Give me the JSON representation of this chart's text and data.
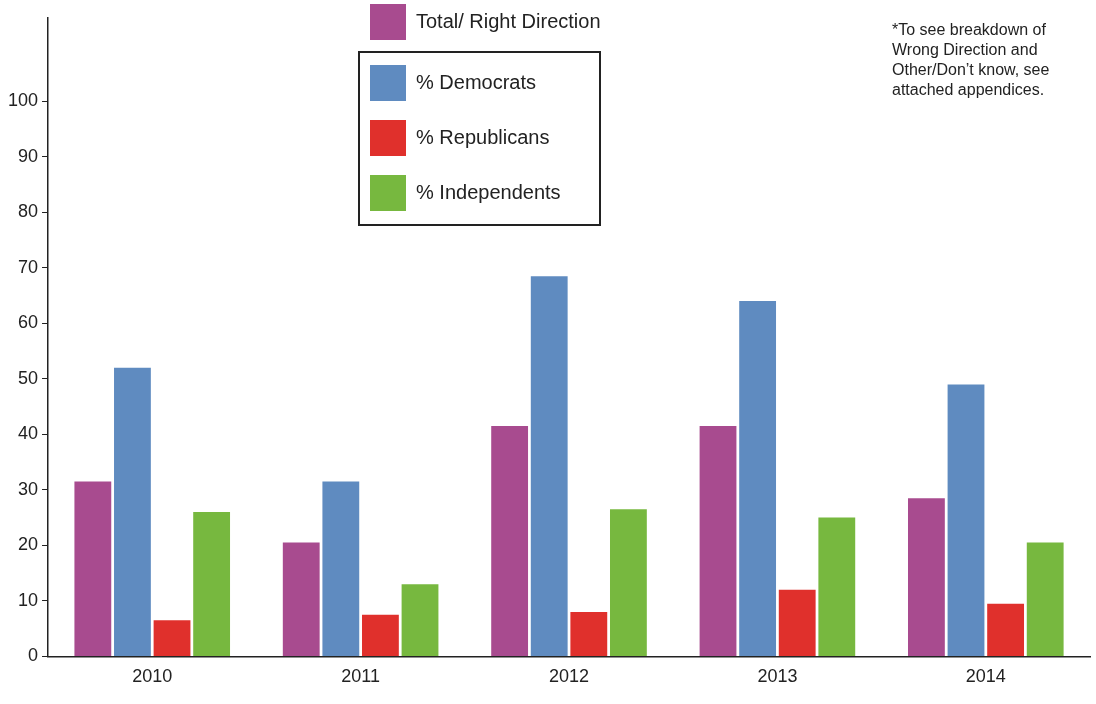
{
  "chart_data": {
    "type": "bar",
    "categories": [
      "2010",
      "2011",
      "2012",
      "2013",
      "2014"
    ],
    "series": [
      {
        "name": "Total/ Right Direction",
        "color": "#a84b8f",
        "values": [
          31.5,
          20.5,
          41.5,
          41.5,
          28.5
        ]
      },
      {
        "name": "% Democrats",
        "color": "#5f8bc0",
        "values": [
          52,
          31.5,
          68.5,
          64,
          49
        ]
      },
      {
        "name": "% Republicans",
        "color": "#e0302c",
        "values": [
          6.5,
          7.5,
          8,
          12,
          9.5
        ]
      },
      {
        "name": "% Independents",
        "color": "#77b83f",
        "values": [
          26,
          13,
          26.5,
          25,
          20.5
        ]
      }
    ],
    "ylim": [
      0,
      115
    ],
    "yticks": [
      0,
      10,
      20,
      30,
      40,
      50,
      60,
      70,
      80,
      90,
      100
    ],
    "grid": false,
    "legend": "top",
    "annotations": [
      "*To see breakdown of Wrong Direction and Other/Don’t know, see attached appendices."
    ]
  }
}
